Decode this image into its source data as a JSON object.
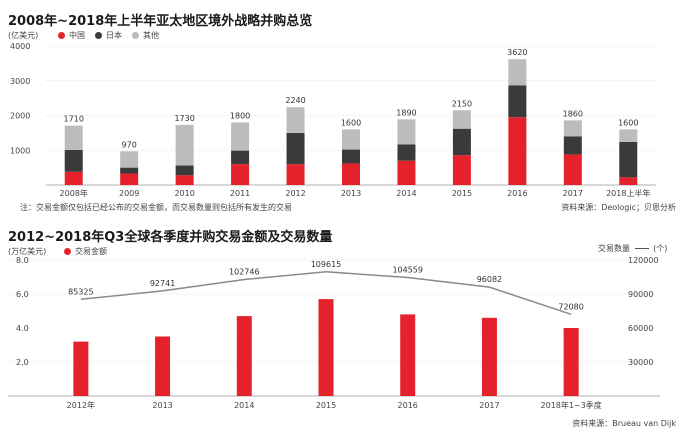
{
  "chart_data": [
    {
      "type": "bar",
      "stacked": true,
      "title": "2008年~2018年上半年亚太地区境外战略并购总览",
      "ylabel": "(亿美元)",
      "categories": [
        "2008年",
        "2009",
        "2010",
        "2011",
        "2012",
        "2013",
        "2014",
        "2015",
        "2016",
        "2017",
        "2018上半年"
      ],
      "series": [
        {
          "name": "中国",
          "color": "#e5222b",
          "values": [
            380,
            330,
            280,
            600,
            600,
            620,
            700,
            860,
            1950,
            880,
            220
          ]
        },
        {
          "name": "日本",
          "color": "#3a3a3a",
          "values": [
            630,
            170,
            280,
            390,
            900,
            400,
            470,
            760,
            920,
            520,
            1020
          ]
        },
        {
          "name": "其他",
          "color": "#bcbcbc",
          "values": [
            700,
            470,
            1170,
            810,
            740,
            580,
            720,
            530,
            750,
            460,
            360
          ]
        }
      ],
      "totals": [
        "1710",
        "970",
        "1730",
        "1800",
        "2240",
        "1600",
        "1890",
        "2150",
        "3620",
        "1860",
        "1600"
      ],
      "ylim": [
        0,
        4000
      ],
      "yticks": [
        "1000",
        "2000",
        "3000",
        "4000"
      ],
      "grid": true,
      "legend_position": "top-left",
      "note": "注：交易金额仅包括已经公布的交易金额，而交易数量则包括所有发生的交易",
      "source": "资料来源：Deologic；贝恩分析"
    },
    {
      "type": "bar",
      "title": "2012~2018年Q3全球各季度并购交易金额及交易数量",
      "ylabel": "(万亿美元)",
      "y2label": "交易数量",
      "y2unit": "(个)",
      "categories": [
        "2012年",
        "2013",
        "2014",
        "2015",
        "2016",
        "2017",
        "2018年1~3季度"
      ],
      "series": [
        {
          "name": "交易金额",
          "color": "#e5222b",
          "values": [
            3.2,
            3.5,
            4.7,
            5.7,
            4.8,
            4.6,
            4.0
          ]
        },
        {
          "name": "交易数量",
          "color": "#8a8a8a",
          "values": [
            85325,
            92741,
            102746,
            109615,
            104559,
            96082,
            72080
          ]
        }
      ],
      "count_labels": [
        "85325",
        "92741",
        "102746",
        "109615",
        "104559",
        "96082",
        "72080"
      ],
      "ylim": [
        0,
        8.0
      ],
      "yticks": [
        "2.0",
        "4.0",
        "6.0",
        "8.0"
      ],
      "y2lim": [
        0,
        120000
      ],
      "y2ticks": [
        "30000",
        "60000",
        "90000",
        "120000"
      ],
      "grid": true,
      "legend_position": "top-left",
      "source": "资料来源：Brueau van Dijk"
    }
  ]
}
